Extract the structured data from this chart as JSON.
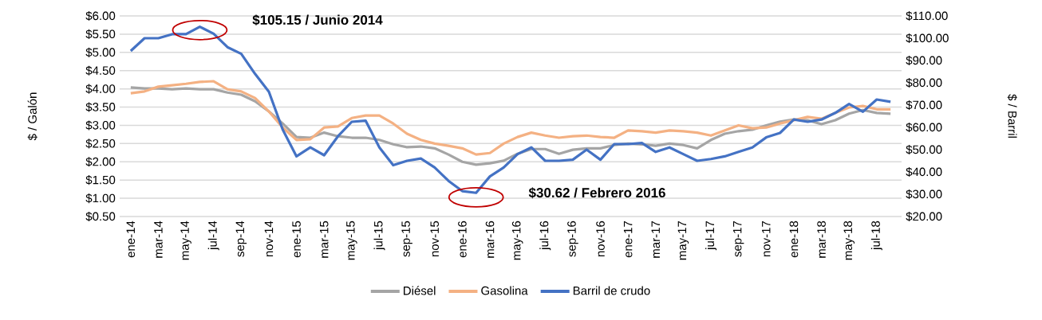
{
  "chart_data": {
    "type": "line",
    "ylabel": "$ / Galón",
    "y2label": "$ / Barril",
    "categories": [
      "ene-14",
      null,
      "mar-14",
      null,
      "may-14",
      null,
      "jul-14",
      null,
      "sep-14",
      null,
      "nov-14",
      null,
      "ene-15",
      null,
      "mar-15",
      null,
      "may-15",
      null,
      "jul-15",
      null,
      "sep-15",
      null,
      "nov-15",
      null,
      "ene-16",
      null,
      "mar-16",
      null,
      "may-16",
      null,
      "jul-16",
      null,
      "sep-16",
      null,
      "nov-16",
      null,
      "ene-17",
      null,
      "mar-17",
      null,
      "may-17",
      null,
      "jul-17",
      null,
      "sep-17",
      null,
      "nov-17",
      null,
      "ene-18",
      null,
      "mar-18",
      null,
      "may-18",
      null,
      "jul-18",
      null
    ],
    "series": [
      {
        "name": "Diésel",
        "color": "#a5a5a5",
        "values": [
          4.04,
          4.01,
          4.01,
          3.99,
          4.01,
          3.99,
          3.99,
          3.9,
          3.84,
          3.66,
          3.38,
          3.05,
          2.68,
          2.66,
          2.8,
          2.7,
          2.66,
          2.66,
          2.6,
          2.48,
          2.4,
          2.42,
          2.37,
          2.2,
          2.0,
          1.92,
          1.96,
          2.03,
          2.22,
          2.35,
          2.35,
          2.22,
          2.33,
          2.37,
          2.37,
          2.46,
          2.5,
          2.48,
          2.44,
          2.5,
          2.46,
          2.37,
          2.6,
          2.77,
          2.84,
          2.88,
          3.0,
          3.1,
          3.16,
          3.14,
          3.03,
          3.14,
          3.32,
          3.42,
          3.34,
          3.32
        ]
      },
      {
        "name": "Gasolina",
        "color": "#f4b183",
        "values": [
          3.88,
          3.93,
          4.06,
          4.1,
          4.14,
          4.19,
          4.21,
          3.99,
          3.93,
          3.75,
          3.38,
          2.94,
          2.6,
          2.62,
          2.94,
          2.97,
          3.2,
          3.27,
          3.27,
          3.05,
          2.77,
          2.6,
          2.5,
          2.44,
          2.37,
          2.2,
          2.24,
          2.5,
          2.68,
          2.8,
          2.72,
          2.66,
          2.7,
          2.72,
          2.68,
          2.66,
          2.86,
          2.84,
          2.8,
          2.86,
          2.84,
          2.8,
          2.72,
          2.86,
          3.0,
          2.92,
          2.94,
          3.05,
          3.14,
          3.23,
          3.18,
          3.34,
          3.49,
          3.53,
          3.44,
          3.44
        ]
      },
      {
        "name": "Barril de crudo",
        "color": "#4472c4",
        "axis": "y2",
        "values": [
          94.3,
          100,
          100,
          101.8,
          101.8,
          105.15,
          102,
          96,
          93,
          84,
          76,
          59,
          47,
          51,
          47.5,
          56,
          62.5,
          63,
          51,
          43,
          45,
          46,
          42,
          36,
          31.4,
          30.62,
          38,
          42,
          48,
          51,
          45,
          45,
          45.5,
          50,
          45.5,
          52.5,
          52.5,
          53,
          49,
          51,
          48,
          45,
          45.8,
          47,
          49,
          51,
          55.5,
          57.5,
          63.5,
          62.5,
          63.5,
          66.5,
          70.5,
          67,
          72.5,
          71.5
        ]
      }
    ],
    "ylim": [
      0.5,
      6
    ],
    "yticks": [
      {
        "value": 0.5,
        "label": "$0.50"
      },
      {
        "value": 1,
        "label": "$1.00"
      },
      {
        "value": 1.5,
        "label": "$1.50"
      },
      {
        "value": 2,
        "label": "$2.00"
      },
      {
        "value": 2.5,
        "label": "$2.50"
      },
      {
        "value": 3,
        "label": "$3.00"
      },
      {
        "value": 3.5,
        "label": "$3.50"
      },
      {
        "value": 4,
        "label": "$4.00"
      },
      {
        "value": 4.5,
        "label": "$4.50"
      },
      {
        "value": 5,
        "label": "$5.00"
      },
      {
        "value": 5.5,
        "label": "$5.50"
      },
      {
        "value": 6,
        "label": "$6.00"
      }
    ],
    "y2lim": [
      20,
      110
    ],
    "y2ticks": [
      {
        "value": 20,
        "label": "$20.00"
      },
      {
        "value": 30,
        "label": "$30.00"
      },
      {
        "value": 40,
        "label": "$40.00"
      },
      {
        "value": 50,
        "label": "$50.00"
      },
      {
        "value": 60,
        "label": "$60.00"
      },
      {
        "value": 70,
        "label": "$70.00"
      },
      {
        "value": 80,
        "label": "$80.00"
      },
      {
        "value": 90,
        "label": "$90.00"
      },
      {
        "value": 100,
        "label": "$100.00"
      },
      {
        "value": 110,
        "label": "$110.00"
      }
    ],
    "annotations": [
      "$105.15 / Junio 2014",
      "$30.62 / Febrero 2016"
    ],
    "grid": "y",
    "legend": "bottom"
  }
}
